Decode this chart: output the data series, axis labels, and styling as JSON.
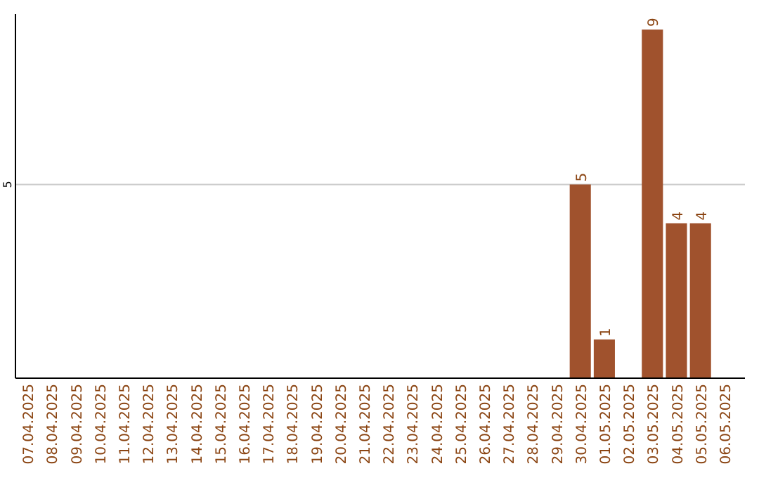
{
  "chart_data": {
    "type": "bar",
    "categories": [
      "07.04.2025",
      "08.04.2025",
      "09.04.2025",
      "10.04.2025",
      "11.04.2025",
      "12.04.2025",
      "13.04.2025",
      "14.04.2025",
      "15.04.2025",
      "16.04.2025",
      "17.04.2025",
      "18.04.2025",
      "19.04.2025",
      "20.04.2025",
      "21.04.2025",
      "22.04.2025",
      "23.04.2025",
      "24.04.2025",
      "25.04.2025",
      "26.04.2025",
      "27.04.2025",
      "28.04.2025",
      "29.04.2025",
      "30.04.2025",
      "01.05.2025",
      "02.05.2025",
      "03.05.2025",
      "04.05.2025",
      "05.05.2025",
      "06.05.2025"
    ],
    "values": [
      null,
      null,
      null,
      null,
      null,
      null,
      null,
      null,
      null,
      null,
      null,
      null,
      null,
      null,
      null,
      null,
      null,
      null,
      null,
      null,
      null,
      null,
      null,
      5,
      1,
      null,
      9,
      4,
      4,
      null
    ],
    "color": "#a0522d",
    "ylim": [
      0,
      9.4
    ],
    "yticks": [
      5
    ],
    "grid": "y",
    "data_labels": true
  }
}
